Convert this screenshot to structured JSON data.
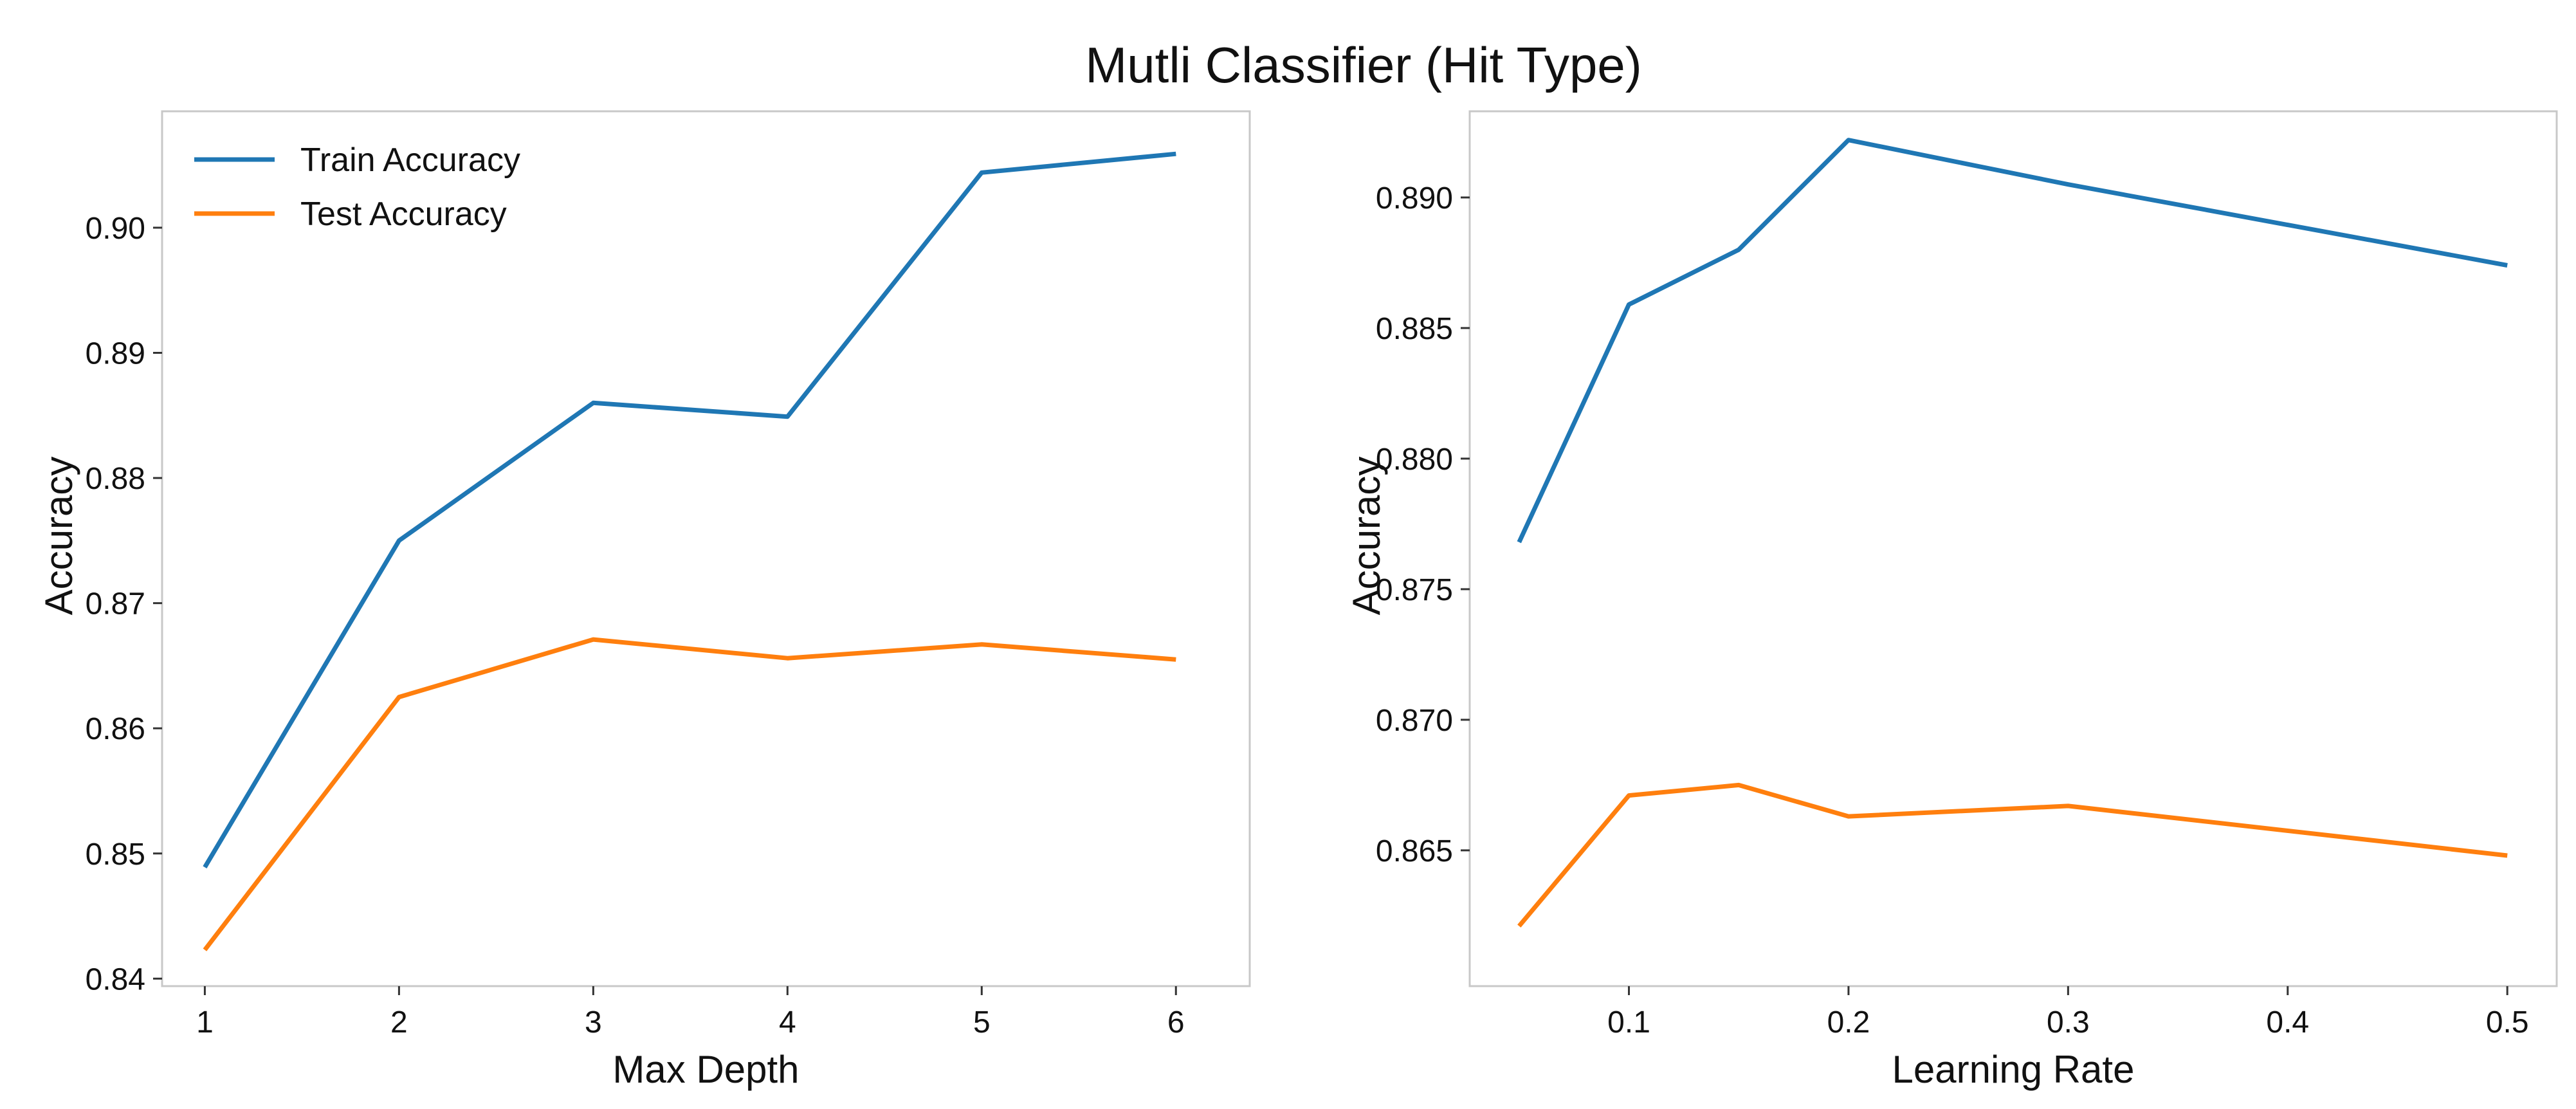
{
  "figure": {
    "title": "Mutli Classifier (Hit Type)"
  },
  "chart_data": [
    {
      "type": "line",
      "xlabel": "Max Depth",
      "ylabel": "Accuracy",
      "x": [
        1,
        2,
        3,
        4,
        5,
        6
      ],
      "xticks": [
        1,
        2,
        3,
        4,
        5,
        6
      ],
      "xtick_labels": [
        "1",
        "2",
        "3",
        "4",
        "5",
        "6"
      ],
      "xlim": [
        0.78,
        6.38
      ],
      "yticks": [
        0.84,
        0.85,
        0.86,
        0.87,
        0.88,
        0.89,
        0.9
      ],
      "ytick_labels": [
        "0.84",
        "0.85",
        "0.86",
        "0.87",
        "0.88",
        "0.89",
        "0.90"
      ],
      "ylim": [
        0.8394,
        0.9093
      ],
      "grid": false,
      "legend": "upper-left",
      "series": [
        {
          "name": "Train Accuracy",
          "color": "#1f77b4",
          "values": [
            0.8489,
            0.875,
            0.886,
            0.8849,
            0.9044,
            0.9059
          ]
        },
        {
          "name": "Test Accuracy",
          "color": "#ff7f0e",
          "values": [
            0.8423,
            0.8625,
            0.8671,
            0.8656,
            0.8667,
            0.8655
          ]
        }
      ]
    },
    {
      "type": "line",
      "xlabel": "Learning Rate",
      "ylabel": "Accuracy",
      "x": [
        0.05,
        0.1,
        0.15,
        0.2,
        0.3,
        0.5
      ],
      "xticks": [
        0.1,
        0.2,
        0.3,
        0.4,
        0.5
      ],
      "xtick_labels": [
        "0.1",
        "0.2",
        "0.3",
        "0.4",
        "0.5"
      ],
      "xlim": [
        0.0275,
        0.5225
      ],
      "yticks": [
        0.865,
        0.87,
        0.875,
        0.88,
        0.885,
        0.89
      ],
      "ytick_labels": [
        "0.865",
        "0.870",
        "0.875",
        "0.880",
        "0.885",
        "0.890"
      ],
      "ylim": [
        0.8598,
        0.8933
      ],
      "grid": false,
      "legend": "none",
      "series": [
        {
          "name": "Train Accuracy",
          "color": "#1f77b4",
          "values": [
            0.8768,
            0.8859,
            0.888,
            0.8922,
            0.8905,
            0.8874
          ]
        },
        {
          "name": "Test Accuracy",
          "color": "#ff7f0e",
          "values": [
            0.8621,
            0.8671,
            0.8675,
            0.8663,
            0.8667,
            0.8648
          ]
        }
      ]
    }
  ]
}
